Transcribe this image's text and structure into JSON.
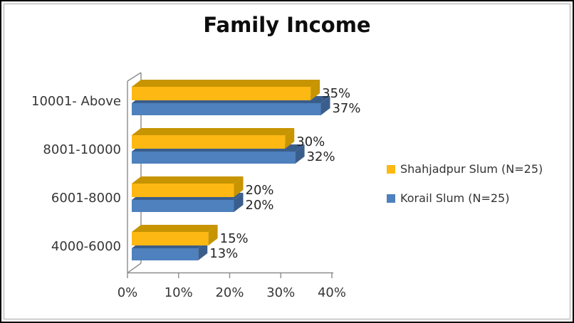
{
  "frame": {
    "background": "#ffffff",
    "outer_border": "#000000",
    "inner_border": "#a9a9a9"
  },
  "chart_data": {
    "type": "bar",
    "orientation": "horizontal",
    "effect": "3d",
    "title": "Family Income",
    "categories": [
      "10001- Above",
      "8001-10000",
      "6001-8000",
      "4000-6000"
    ],
    "series": [
      {
        "name": "Shahjadpur Slum (N=25)",
        "color": "#FDB813",
        "shade_color": "#C79402",
        "values": [
          35,
          30,
          20,
          15
        ],
        "value_labels": [
          "35%",
          "30%",
          "20%",
          "15%"
        ]
      },
      {
        "name": "Korail Slum (N=25)",
        "color": "#4E81BD",
        "shade_color": "#3A5E8C",
        "values": [
          37,
          32,
          20,
          13
        ],
        "value_labels": [
          "37%",
          "32%",
          "20%",
          "13%"
        ]
      }
    ],
    "x_axis": {
      "tick_labels": [
        "0%",
        "10%",
        "20%",
        "30%",
        "40%"
      ],
      "tick_values": [
        0,
        10,
        20,
        30,
        40
      ],
      "min": 0,
      "max": 40,
      "axis_color": "#8C8C8C"
    },
    "value_labels_shown": true,
    "legend_position": "right",
    "gridlines": false
  }
}
